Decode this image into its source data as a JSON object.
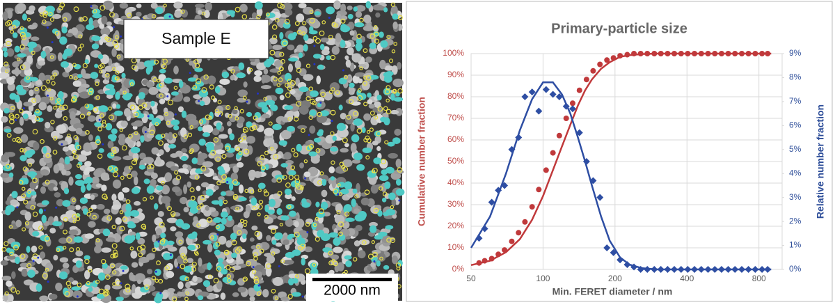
{
  "micrograph": {
    "label": "Sample E",
    "scale_bar": "2000 nm"
  },
  "chart_data": {
    "type": "scatter",
    "title": "Primary-particle size",
    "x_label": "Min. FERET diameter / nm",
    "y_label": "Cumulative number fraction",
    "y2_label": "Relative number fraction",
    "x_log": true,
    "grid": true,
    "xlim": [
      50,
      1000
    ],
    "xticks": [
      50,
      100,
      200,
      400,
      800
    ],
    "ylim": [
      0,
      100
    ],
    "yticks": [
      {
        "value": 0,
        "label": "0%"
      },
      {
        "value": 10,
        "label": "10%"
      },
      {
        "value": 20,
        "label": "20%"
      },
      {
        "value": 30,
        "label": "30%"
      },
      {
        "value": 40,
        "label": "40%"
      },
      {
        "value": 50,
        "label": "50%"
      },
      {
        "value": 60,
        "label": "60%"
      },
      {
        "value": 70,
        "label": "70%"
      },
      {
        "value": 80,
        "label": "80%"
      },
      {
        "value": 90,
        "label": "90%"
      },
      {
        "value": 100,
        "label": "100%"
      }
    ],
    "y2lim": [
      0,
      9
    ],
    "y2ticks": [
      {
        "value": 0,
        "label": "0%"
      },
      {
        "value": 1,
        "label": "1%"
      },
      {
        "value": 2,
        "label": "2%"
      },
      {
        "value": 3,
        "label": "3%"
      },
      {
        "value": 4,
        "label": "4%"
      },
      {
        "value": 5,
        "label": "5%"
      },
      {
        "value": 6,
        "label": "6%"
      },
      {
        "value": 7,
        "label": "7%"
      },
      {
        "value": 8,
        "label": "8%"
      },
      {
        "value": 9,
        "label": "9%"
      }
    ],
    "y_color": "#c0504d",
    "y2_color": "#2f4f9a",
    "series": [
      {
        "mode": "line",
        "color": "#c0393b",
        "axis": "y",
        "x": [
          50,
          60,
          70,
          80,
          90,
          100,
          110,
          120,
          130,
          140,
          150,
          160,
          175,
          190,
          210,
          230,
          260,
          300,
          400,
          600,
          900
        ],
        "values": [
          2,
          4,
          8,
          14,
          23,
          34,
          46,
          57,
          67,
          76,
          83,
          88,
          93,
          96,
          98.5,
          99.3,
          99.8,
          100,
          100,
          100,
          100
        ]
      },
      {
        "mode": "line",
        "color": "#2e4ea3",
        "axis": "y2",
        "x": [
          50,
          60,
          70,
          80,
          90,
          100,
          110,
          120,
          130,
          140,
          150,
          160,
          175,
          190,
          210,
          230,
          260,
          300,
          400,
          600,
          900
        ],
        "values": [
          0.9,
          2.2,
          4.0,
          5.8,
          7.1,
          7.8,
          7.8,
          7.3,
          6.5,
          5.5,
          4.5,
          3.5,
          2.2,
          1.2,
          0.5,
          0.2,
          0.05,
          0,
          0,
          0,
          0
        ]
      },
      {
        "mode": "markers",
        "marker": "circle",
        "color": "#c0393b",
        "axis": "y",
        "x": [
          54,
          57,
          61,
          65,
          69,
          74,
          79,
          84,
          90,
          96,
          103,
          110,
          117,
          125,
          133,
          142,
          152,
          162,
          173,
          185,
          197,
          210,
          225,
          240,
          256,
          273,
          292,
          311,
          332,
          354,
          378,
          403,
          430,
          459,
          490,
          523,
          558,
          595,
          635,
          678,
          723,
          772,
          824,
          870
        ],
        "values": [
          3,
          4,
          5,
          7,
          9,
          13,
          17,
          22,
          29,
          37,
          46,
          54,
          62,
          70,
          77,
          83,
          88,
          92,
          95,
          97,
          98,
          99,
          99.5,
          100,
          100,
          100,
          100,
          100,
          100,
          100,
          100,
          100,
          100,
          100,
          100,
          100,
          100,
          100,
          100,
          100,
          100,
          100,
          100,
          100
        ]
      },
      {
        "mode": "markers",
        "marker": "diamond",
        "color": "#2e4ea3",
        "axis": "y2",
        "x": [
          54,
          57,
          61,
          65,
          69,
          74,
          79,
          84,
          90,
          96,
          103,
          110,
          117,
          125,
          133,
          142,
          152,
          162,
          173,
          185,
          197,
          210,
          225,
          240,
          256,
          273,
          292,
          311,
          332,
          354,
          378,
          403,
          430,
          459,
          490,
          523,
          558,
          595,
          635,
          678,
          723,
          772,
          824,
          870
        ],
        "values": [
          1.3,
          1.7,
          2.8,
          3.3,
          3.5,
          5.0,
          5.5,
          7.2,
          7.4,
          6.6,
          7.5,
          7.3,
          7.2,
          6.8,
          6.7,
          5.7,
          4.5,
          3.7,
          3.0,
          0.9,
          0.7,
          0.4,
          0.2,
          0.1,
          0,
          0,
          0,
          0,
          0,
          0,
          0,
          0,
          0,
          0,
          0,
          0,
          0,
          0,
          0,
          0,
          0,
          0,
          0,
          0
        ]
      }
    ]
  }
}
